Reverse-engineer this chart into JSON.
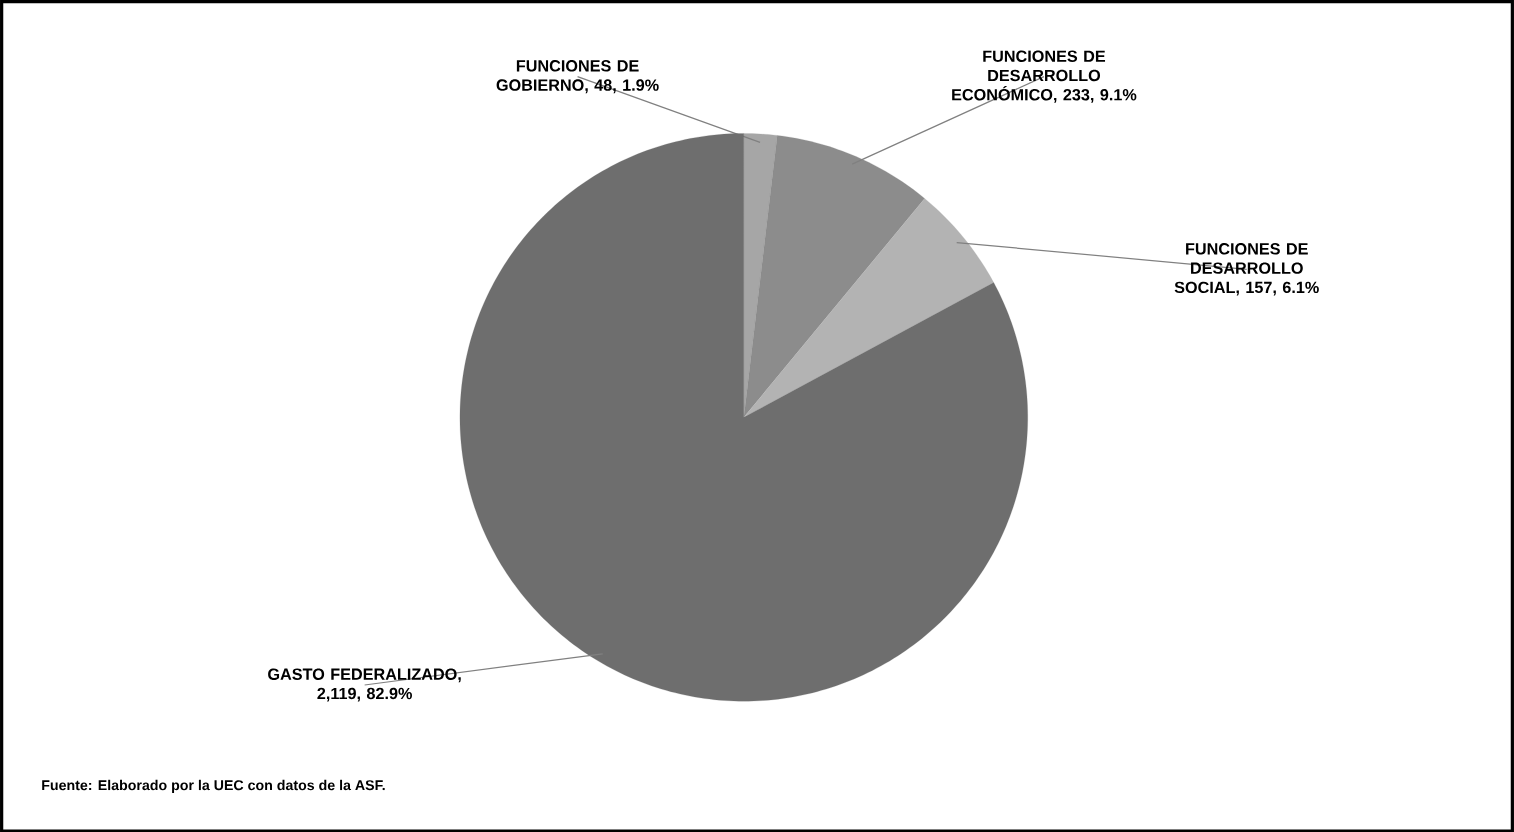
{
  "chart_data": {
    "type": "pie",
    "categories": [
      "FUNCIONES DE GOBIERNO",
      "FUNCIONES DE DESARROLLO ECONÓMICO",
      "FUNCIONES DE DESARROLLO SOCIAL",
      "GASTO FEDERALIZADO"
    ],
    "values": [
      48,
      233,
      157,
      2119
    ],
    "value_labels": [
      ", 48, 1.9%",
      ", 233, 9.1%",
      ", 157, 6.1%",
      ", 2,119, 82.9%"
    ],
    "colors": [
      "#a6a6a6",
      "#8c8c8c",
      "#b3b3b3",
      "#6e6e6e"
    ],
    "annotations": [
      "Fuente: Elaborado por la UEC con datos de la ASF."
    ]
  }
}
